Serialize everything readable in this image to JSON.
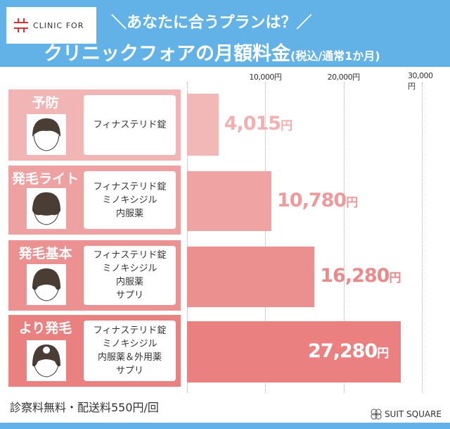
{
  "header": {
    "logo_text": "CLINIC FOR",
    "subtitle": "＼あなたに合うプランは？／",
    "title": "クリニックフォアの月額料金",
    "title_note": "(税込/通常1か月)"
  },
  "chart_data": {
    "type": "bar",
    "orientation": "horizontal",
    "title": "クリニックフォアの月額料金 (税込/通常1か月)",
    "categories": [
      "予防",
      "発毛ライト",
      "発毛基本",
      "より発毛"
    ],
    "values": [
      4015,
      10780,
      16280,
      27280
    ],
    "value_labels": [
      "4,015",
      "10,780",
      "16,280",
      "27,280"
    ],
    "unit": "円",
    "xlim": [
      0,
      30000
    ],
    "ticks": [
      {
        "value": 10000,
        "label": "10,000円"
      },
      {
        "value": 20000,
        "label": "20,000円"
      },
      {
        "value": 30000,
        "label": "30,000円"
      }
    ],
    "grid": true
  },
  "plans": [
    {
      "name": "予防",
      "drugs": [
        "フィナステリド錠"
      ],
      "card_color": "#f2b5b5",
      "bar_color": "#f2b8b8",
      "price_color": "#f2b0b0"
    },
    {
      "name": "発毛ライト",
      "drugs": [
        "フィナステリド錠",
        "ミノキシジル",
        "内服薬"
      ],
      "card_color": "#eea1a1",
      "bar_color": "#efa3a3",
      "price_color": "#ec9a9a"
    },
    {
      "name": "発毛基本",
      "drugs": [
        "フィナステリド錠",
        "ミノキシジル",
        "内服薬",
        "サプリ"
      ],
      "card_color": "#ec9191",
      "bar_color": "#ec8f8f",
      "price_color": "#ea8a8a"
    },
    {
      "name": "より発毛",
      "drugs": [
        "フィナステリド錠",
        "ミノキシジル",
        "内服薬＆外用薬",
        "サプリ"
      ],
      "card_color": "#e98181",
      "bar_color": "#eb8080",
      "price_color": "#ffffff"
    }
  ],
  "footer": {
    "note": "診察料無料・配送料550円/回",
    "brand": "SUIT SQUARE"
  }
}
